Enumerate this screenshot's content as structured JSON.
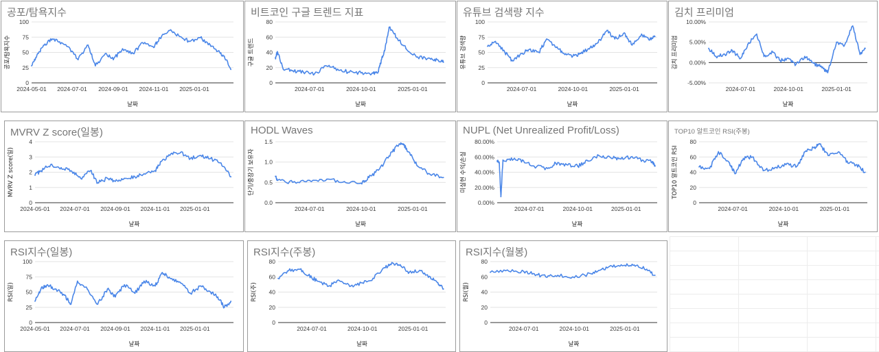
{
  "style": {
    "line_color": "#4a86e8",
    "grid_color": "#e3e3e3",
    "title_color": "#757575",
    "border_color": "#9a9a9a"
  },
  "charts": [
    {
      "id": "fear-greed",
      "title": "공포/탐욕지수",
      "ylabel": "공포/탐욕지수",
      "xlabel": "날짜",
      "ymin": 0,
      "ymax": 100,
      "yticks": [
        0,
        25,
        50,
        75,
        100
      ],
      "ytick_format": "int",
      "xmin": "2024-05-01",
      "xmax": "2025-03-01",
      "xticks": [
        "2024-05-01",
        "2024-07-01",
        "2024-09-01",
        "2024-11-01",
        "2025-01-01"
      ]
    },
    {
      "id": "google-trend",
      "title": "비트코인 구글 트렌드 지표",
      "ylabel": "구글 트렌드",
      "xlabel": "날짜",
      "ymin": 0,
      "ymax": 80,
      "yticks": [
        0,
        20,
        40,
        60,
        80
      ],
      "ytick_format": "int",
      "xmin": "2024-05-01",
      "xmax": "2025-03-01",
      "xticks": [
        "2024-07-01",
        "2024-10-01",
        "2025-01-01"
      ]
    },
    {
      "id": "youtube-search",
      "title": "유튜브 검색량 지수",
      "ylabel": "유튜브 검색량",
      "xlabel": "날짜",
      "ymin": 0,
      "ymax": 100,
      "yticks": [
        0,
        25,
        50,
        75,
        100
      ],
      "ytick_format": "int",
      "xmin": "2024-05-01",
      "xmax": "2025-03-01",
      "xticks": [
        "2024-07-01",
        "2024-10-01",
        "2025-01-01"
      ]
    },
    {
      "id": "kimchi-premium",
      "title": "김치 프리미엄",
      "ylabel": "김치 프리미엄",
      "xlabel": "날짜",
      "ymin": -5,
      "ymax": 10,
      "yticks": [
        -5,
        0,
        5,
        10
      ],
      "ytick_format": "pct2",
      "zero_line": true,
      "xmin": "2024-05-01",
      "xmax": "2025-03-01",
      "xticks": [
        "2024-07-01",
        "2024-10-01",
        "2025-01-01"
      ]
    },
    {
      "id": "mvrv-z",
      "title": "MVRV Z score(일봉)",
      "ylabel": "MVRV Z score(일)",
      "xlabel": "날짜",
      "ymin": 0,
      "ymax": 4,
      "yticks": [
        0,
        1,
        2,
        3,
        4
      ],
      "ytick_format": "int",
      "xmin": "2024-05-01",
      "xmax": "2025-03-01",
      "xticks": [
        "2024-05-01",
        "2024-07-01",
        "2024-09-01",
        "2024-11-01",
        "2025-01-01"
      ]
    },
    {
      "id": "hodl-waves",
      "title": "HODL Waves",
      "ylabel": "단기/중장기 보유자",
      "xlabel": "날짜",
      "ymin": 0,
      "ymax": 1.5,
      "yticks": [
        0,
        0.5,
        1,
        1.5
      ],
      "ytick_format": "dec1",
      "xmin": "2024-05-01",
      "xmax": "2025-03-01",
      "xticks": [
        "2024-07-01",
        "2024-10-01",
        "2025-01-01"
      ]
    },
    {
      "id": "nupl",
      "title": "NUPL (Net Unrealized Profit/Loss)",
      "ylabel": "미실현 수익/손실",
      "xlabel": "날짜",
      "ymin": 0,
      "ymax": 80,
      "yticks": [
        0,
        20,
        40,
        60,
        80
      ],
      "ytick_format": "pct2",
      "xmin": "2024-05-01",
      "xmax": "2025-03-01",
      "xticks": [
        "2024-07-01",
        "2024-10-01",
        "2025-01-01"
      ]
    },
    {
      "id": "top10-alt-rsi",
      "title": "TOP10 알트코인 RSI(주봉)",
      "title_small": true,
      "ylabel": "TOP10 알트코인 RSI",
      "xlabel": "날짜",
      "ymin": 0,
      "ymax": 80,
      "yticks": [
        0,
        20,
        40,
        60,
        80
      ],
      "ytick_format": "int",
      "xmin": "2024-05-01",
      "xmax": "2025-03-01",
      "xticks": [
        "2024-07-01",
        "2024-10-01",
        "2025-01-01"
      ]
    },
    {
      "id": "rsi-daily",
      "title": "RSI지수(일봉)",
      "ylabel": "RSI(일)",
      "xlabel": "날짜",
      "ymin": 0,
      "ymax": 100,
      "yticks": [
        0,
        25,
        50,
        75,
        100
      ],
      "ytick_format": "int",
      "xmin": "2024-05-01",
      "xmax": "2025-03-01",
      "xticks": [
        "2024-05-01",
        "2024-07-01",
        "2024-09-01",
        "2024-11-01",
        "2025-01-01"
      ]
    },
    {
      "id": "rsi-weekly",
      "title": "RSI지수(주봉)",
      "ylabel": "RSI(주)",
      "xlabel": "날짜",
      "ymin": 0,
      "ymax": 80,
      "yticks": [
        0,
        20,
        40,
        60,
        80
      ],
      "ytick_format": "int",
      "xmin": "2024-05-01",
      "xmax": "2025-03-01",
      "xticks": [
        "2024-07-01",
        "2024-10-01",
        "2025-01-01"
      ]
    },
    {
      "id": "rsi-monthly",
      "title": "RSI지수(월봉)",
      "ylabel": "RSI(월)",
      "xlabel": "날짜",
      "ymin": 0,
      "ymax": 80,
      "yticks": [
        0,
        20,
        40,
        60,
        80
      ],
      "ytick_format": "int",
      "xmin": "2024-05-01",
      "xmax": "2025-03-01",
      "xticks": [
        "2024-07-01",
        "2024-10-01",
        "2025-01-01"
      ]
    }
  ],
  "chart_data": [
    {
      "type": "line",
      "title": "공포/탐욕지수",
      "xlabel": "날짜",
      "ylabel": "공포/탐욕지수",
      "ylim": [
        0,
        100
      ],
      "grid": true,
      "x": [
        "2024-05-01",
        "2024-05-10",
        "2024-05-20",
        "2024-06-01",
        "2024-06-15",
        "2024-07-01",
        "2024-07-10",
        "2024-07-25",
        "2024-08-05",
        "2024-08-20",
        "2024-09-01",
        "2024-09-15",
        "2024-10-01",
        "2024-10-15",
        "2024-11-01",
        "2024-11-10",
        "2024-11-25",
        "2024-12-10",
        "2024-12-25",
        "2025-01-10",
        "2025-01-25",
        "2025-02-05",
        "2025-02-15",
        "2025-02-25"
      ],
      "series": [
        {
          "values": [
            28,
            48,
            62,
            72,
            66,
            52,
            38,
            62,
            28,
            48,
            38,
            56,
            48,
            66,
            58,
            74,
            86,
            76,
            68,
            74,
            62,
            52,
            44,
            22
          ]
        }
      ]
    },
    {
      "type": "line",
      "title": "비트코인 구글 트렌드 지표",
      "xlabel": "날짜",
      "ylabel": "구글 트렌드",
      "ylim": [
        0,
        80
      ],
      "grid": true,
      "x": [
        "2024-05-01",
        "2024-05-05",
        "2024-05-15",
        "2024-06-01",
        "2024-06-20",
        "2024-07-10",
        "2024-08-01",
        "2024-08-20",
        "2024-09-10",
        "2024-10-01",
        "2024-10-20",
        "2024-11-01",
        "2024-11-06",
        "2024-11-12",
        "2024-11-20",
        "2024-12-05",
        "2024-12-20",
        "2025-01-10",
        "2025-02-01",
        "2025-02-15",
        "2025-02-25"
      ],
      "series": [
        {
          "values": [
            33,
            40,
            18,
            16,
            14,
            12,
            22,
            18,
            14,
            13,
            12,
            15,
            30,
            42,
            73,
            58,
            45,
            34,
            32,
            30,
            27
          ]
        }
      ]
    },
    {
      "type": "line",
      "title": "유튜브 검색량 지수",
      "xlabel": "날짜",
      "ylabel": "유튜브 검색량",
      "ylim": [
        0,
        100
      ],
      "grid": true,
      "x": [
        "2024-05-01",
        "2024-05-15",
        "2024-06-01",
        "2024-06-15",
        "2024-07-01",
        "2024-07-15",
        "2024-08-01",
        "2024-08-15",
        "2024-09-01",
        "2024-09-15",
        "2024-10-01",
        "2024-10-15",
        "2024-11-01",
        "2024-11-15",
        "2024-12-01",
        "2024-12-15",
        "2025-01-01",
        "2025-01-15",
        "2025-02-01",
        "2025-02-15",
        "2025-02-25"
      ],
      "series": [
        {
          "values": [
            60,
            68,
            50,
            36,
            48,
            55,
            50,
            72,
            58,
            48,
            44,
            48,
            58,
            66,
            86,
            72,
            82,
            62,
            80,
            70,
            76
          ]
        }
      ]
    },
    {
      "type": "line",
      "title": "김치 프리미엄",
      "xlabel": "날짜",
      "ylabel": "김치 프리미엄",
      "ylim": [
        -5,
        10
      ],
      "grid": true,
      "x": [
        "2024-05-01",
        "2024-05-15",
        "2024-06-01",
        "2024-06-15",
        "2024-07-01",
        "2024-07-15",
        "2024-08-01",
        "2024-08-15",
        "2024-09-01",
        "2024-09-15",
        "2024-10-01",
        "2024-10-15",
        "2024-11-01",
        "2024-11-15",
        "2024-12-01",
        "2024-12-15",
        "2025-01-01",
        "2025-01-15",
        "2025-02-01",
        "2025-02-15",
        "2025-02-25"
      ],
      "series": [
        {
          "values": [
            3.5,
            1.5,
            2.0,
            3.0,
            1.0,
            4.5,
            7.0,
            1.5,
            2.5,
            0.5,
            1.0,
            -0.5,
            1.5,
            0.0,
            -1.0,
            -2.5,
            5.0,
            4.0,
            9.0,
            2.0,
            3.5
          ]
        }
      ]
    },
    {
      "type": "line",
      "title": "MVRV Z score(일봉)",
      "xlabel": "날짜",
      "ylabel": "MVRV Z score(일)",
      "ylim": [
        0,
        4
      ],
      "grid": true,
      "x": [
        "2024-05-01",
        "2024-05-10",
        "2024-05-25",
        "2024-06-10",
        "2024-06-25",
        "2024-07-10",
        "2024-07-25",
        "2024-08-05",
        "2024-08-20",
        "2024-09-01",
        "2024-09-15",
        "2024-10-01",
        "2024-10-15",
        "2024-11-01",
        "2024-11-10",
        "2024-11-25",
        "2024-12-10",
        "2024-12-25",
        "2025-01-10",
        "2025-01-25",
        "2025-02-10",
        "2025-02-25"
      ],
      "series": [
        {
          "values": [
            1.8,
            2.1,
            2.5,
            2.3,
            2.1,
            1.6,
            2.1,
            1.3,
            1.6,
            1.4,
            1.6,
            1.7,
            1.9,
            2.1,
            2.7,
            3.2,
            3.3,
            2.9,
            3.1,
            2.9,
            2.6,
            1.7
          ]
        }
      ]
    },
    {
      "type": "line",
      "title": "HODL Waves",
      "xlabel": "날짜",
      "ylabel": "단기/중장기 보유자",
      "ylim": [
        0,
        1.5
      ],
      "grid": true,
      "x": [
        "2024-05-01",
        "2024-05-05",
        "2024-06-01",
        "2024-07-01",
        "2024-08-01",
        "2024-09-01",
        "2024-10-01",
        "2024-10-15",
        "2024-11-01",
        "2024-11-20",
        "2024-12-05",
        "2024-12-15",
        "2024-12-25",
        "2025-01-10",
        "2025-02-01",
        "2025-02-25"
      ],
      "series": [
        {
          "values": [
            0.65,
            0.55,
            0.5,
            0.55,
            0.58,
            0.52,
            0.48,
            0.62,
            0.8,
            1.15,
            1.4,
            1.45,
            1.25,
            0.9,
            0.7,
            0.62
          ]
        }
      ]
    },
    {
      "type": "line",
      "title": "NUPL (Net Unrealized Profit/Loss)",
      "xlabel": "날짜",
      "ylabel": "미실현 수익/손실",
      "ylim": [
        0,
        80
      ],
      "grid": true,
      "x": [
        "2024-05-01",
        "2024-05-05",
        "2024-05-08",
        "2024-05-12",
        "2024-06-01",
        "2024-06-20",
        "2024-07-10",
        "2024-08-05",
        "2024-08-20",
        "2024-09-10",
        "2024-10-01",
        "2024-10-20",
        "2024-11-10",
        "2024-12-01",
        "2024-12-20",
        "2025-01-10",
        "2025-02-01",
        "2025-02-20",
        "2025-02-25"
      ],
      "series": [
        {
          "values": [
            55,
            52,
            8,
            56,
            57,
            55,
            48,
            45,
            52,
            50,
            48,
            55,
            62,
            60,
            58,
            60,
            56,
            54,
            48
          ]
        }
      ]
    },
    {
      "type": "line",
      "title": "TOP10 알트코인 RSI(주봉)",
      "xlabel": "날짜",
      "ylabel": "TOP10 알트코인 RSI",
      "ylim": [
        0,
        80
      ],
      "grid": true,
      "x": [
        "2024-05-01",
        "2024-05-20",
        "2024-06-05",
        "2024-06-25",
        "2024-07-05",
        "2024-07-20",
        "2024-08-05",
        "2024-08-25",
        "2024-09-15",
        "2024-10-05",
        "2024-10-25",
        "2024-11-10",
        "2024-11-25",
        "2024-12-05",
        "2024-12-20",
        "2025-01-10",
        "2025-01-25",
        "2025-02-10",
        "2025-02-25"
      ],
      "series": [
        {
          "values": [
            47,
            45,
            67,
            52,
            38,
            58,
            60,
            42,
            46,
            50,
            48,
            68,
            72,
            77,
            62,
            66,
            52,
            50,
            40
          ]
        }
      ]
    },
    {
      "type": "line",
      "title": "RSI지수(일봉)",
      "xlabel": "날짜",
      "ylabel": "RSI(일)",
      "ylim": [
        0,
        100
      ],
      "grid": true,
      "x": [
        "2024-05-01",
        "2024-05-10",
        "2024-05-20",
        "2024-06-01",
        "2024-06-15",
        "2024-06-25",
        "2024-07-05",
        "2024-07-20",
        "2024-08-05",
        "2024-08-20",
        "2024-09-01",
        "2024-09-15",
        "2024-10-01",
        "2024-10-15",
        "2024-11-01",
        "2024-11-12",
        "2024-11-25",
        "2024-12-10",
        "2024-12-25",
        "2025-01-10",
        "2025-01-25",
        "2025-02-05",
        "2025-02-15",
        "2025-02-25"
      ],
      "series": [
        {
          "values": [
            35,
            55,
            62,
            55,
            45,
            30,
            68,
            55,
            30,
            55,
            42,
            62,
            48,
            68,
            60,
            82,
            72,
            65,
            48,
            60,
            50,
            42,
            25,
            35
          ]
        }
      ]
    },
    {
      "type": "line",
      "title": "RSI지수(주봉)",
      "xlabel": "날짜",
      "ylabel": "RSI(주)",
      "ylim": [
        0,
        80
      ],
      "grid": true,
      "x": [
        "2024-05-01",
        "2024-05-20",
        "2024-06-10",
        "2024-06-25",
        "2024-07-10",
        "2024-08-01",
        "2024-08-20",
        "2024-09-10",
        "2024-10-01",
        "2024-10-20",
        "2024-11-10",
        "2024-11-25",
        "2024-12-10",
        "2024-12-25",
        "2025-01-15",
        "2025-02-01",
        "2025-02-15",
        "2025-02-25"
      ],
      "series": [
        {
          "values": [
            58,
            68,
            70,
            62,
            55,
            48,
            55,
            48,
            52,
            58,
            72,
            78,
            74,
            66,
            68,
            60,
            52,
            44
          ]
        }
      ]
    },
    {
      "type": "line",
      "title": "RSI지수(월봉)",
      "xlabel": "날짜",
      "ylabel": "RSI(월)",
      "ylim": [
        0,
        80
      ],
      "grid": true,
      "x": [
        "2024-05-01",
        "2024-06-01",
        "2024-07-01",
        "2024-07-20",
        "2024-08-10",
        "2024-09-01",
        "2024-10-01",
        "2024-11-01",
        "2024-11-20",
        "2024-12-10",
        "2025-01-01",
        "2025-01-20",
        "2025-02-10",
        "2025-02-25"
      ],
      "series": [
        {
          "values": [
            66,
            69,
            67,
            64,
            60,
            62,
            59,
            64,
            70,
            73,
            75,
            74,
            70,
            62
          ]
        }
      ]
    }
  ]
}
